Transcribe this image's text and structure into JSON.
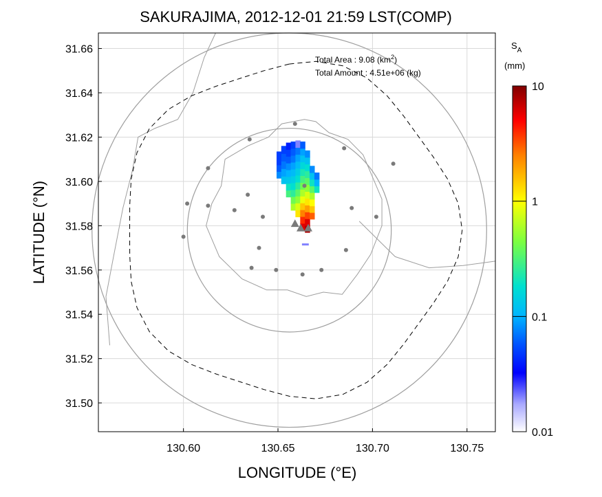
{
  "chart_data": {
    "type": "heatmap",
    "title": "SAKURAJIMA, 2012-12-01 21:59 LST(COMP)",
    "xlabel": "LONGITUDE (°E)",
    "ylabel": "LATITUDE (°N)",
    "xlim": [
      130.555,
      130.765
    ],
    "ylim": [
      31.487,
      31.667
    ],
    "x_ticks": [
      130.6,
      130.65,
      130.7,
      130.75
    ],
    "x_tick_labels": [
      "130.60",
      "130.65",
      "130.70",
      "130.75"
    ],
    "y_ticks": [
      31.5,
      31.52,
      31.54,
      31.56,
      31.58,
      31.6,
      31.62,
      31.64,
      31.66
    ],
    "y_tick_labels": [
      "31.50",
      "31.52",
      "31.54",
      "31.56",
      "31.58",
      "31.60",
      "31.62",
      "31.64",
      "31.66"
    ],
    "grid": true,
    "annotations": {
      "area_label": "Total Area   : 9.08 (km",
      "area_sup": "2",
      "area_close": ")",
      "amount_label": "Total Amount : 4.51e+06 (kg)"
    },
    "colorbar": {
      "title": "S",
      "title_sub": "A",
      "unit": "(mm)",
      "scale": "log",
      "range": [
        0.01,
        10
      ],
      "ticks": [
        0.01,
        0.1,
        1,
        10
      ],
      "tick_labels": [
        "0.01",
        "0.1",
        "1",
        "10"
      ]
    },
    "circles": [
      {
        "center": [
          130.656,
          31.578
        ],
        "radius_deg_lat": 0.046
      },
      {
        "center": [
          130.656,
          31.578
        ],
        "radius_deg_lat": 0.089
      }
    ],
    "vents": [
      [
        130.659,
        31.581
      ],
      [
        130.662,
        31.579
      ],
      [
        130.666,
        31.579
      ]
    ],
    "stations": [
      [
        130.659,
        31.626
      ],
      [
        130.635,
        31.619
      ],
      [
        130.685,
        31.615
      ],
      [
        130.613,
        31.606
      ],
      [
        130.711,
        31.608
      ],
      [
        130.602,
        31.59
      ],
      [
        130.613,
        31.589
      ],
      [
        130.627,
        31.587
      ],
      [
        130.634,
        31.594
      ],
      [
        130.642,
        31.584
      ],
      [
        130.664,
        31.598
      ],
      [
        130.689,
        31.588
      ],
      [
        130.702,
        31.584
      ],
      [
        130.6,
        31.575
      ],
      [
        130.64,
        31.57
      ],
      [
        130.636,
        31.561
      ],
      [
        130.649,
        31.56
      ],
      [
        130.663,
        31.558
      ],
      [
        130.673,
        31.56
      ],
      [
        130.686,
        31.569
      ]
    ],
    "ash_columns": [
      {
        "lon": 130.6505,
        "lat0": 31.6015,
        "lat1": 31.6135,
        "vals": [
          0.08,
          0.06,
          0.05,
          0.05
        ]
      },
      {
        "lon": 130.653,
        "lat0": 31.599,
        "lat1": 31.616,
        "vals": [
          0.12,
          0.09,
          0.07,
          0.06,
          0.05
        ]
      },
      {
        "lon": 130.6555,
        "lat0": 31.593,
        "lat1": 31.6175,
        "vals": [
          0.3,
          0.2,
          0.13,
          0.1,
          0.08,
          0.06,
          0.05,
          0.04
        ]
      },
      {
        "lon": 130.658,
        "lat0": 31.587,
        "lat1": 31.618,
        "vals": [
          0.6,
          0.4,
          0.25,
          0.18,
          0.14,
          0.11,
          0.09,
          0.07,
          0.06,
          0.05
        ]
      },
      {
        "lon": 130.6605,
        "lat0": 31.584,
        "lat1": 31.6185,
        "vals": [
          1.2,
          0.8,
          0.5,
          0.35,
          0.25,
          0.18,
          0.14,
          0.11,
          0.09,
          0.07,
          0.02
        ]
      },
      {
        "lon": 130.663,
        "lat0": 31.578,
        "lat1": 31.618,
        "vals": [
          6,
          4,
          2.5,
          1.5,
          0.9,
          0.6,
          0.4,
          0.3,
          0.22,
          0.16,
          0.12,
          0.09,
          0.06
        ]
      },
      {
        "lon": 130.6655,
        "lat0": 31.577,
        "lat1": 31.614,
        "vals": [
          8,
          6,
          3.5,
          2,
          1.2,
          0.8,
          0.5,
          0.35,
          0.25,
          0.18,
          0.12,
          0.08
        ]
      },
      {
        "lon": 130.668,
        "lat0": 31.583,
        "lat1": 31.607,
        "vals": [
          3,
          1.5,
          1,
          0.6,
          0.35,
          0.2,
          0.12,
          0.08
        ]
      },
      {
        "lon": 130.6705,
        "lat0": 31.595,
        "lat1": 31.604,
        "vals": [
          0.2,
          0.1,
          0.07
        ]
      }
    ],
    "ash_extra": [
      [
        130.6645,
        31.572,
        0.02
      ]
    ]
  }
}
